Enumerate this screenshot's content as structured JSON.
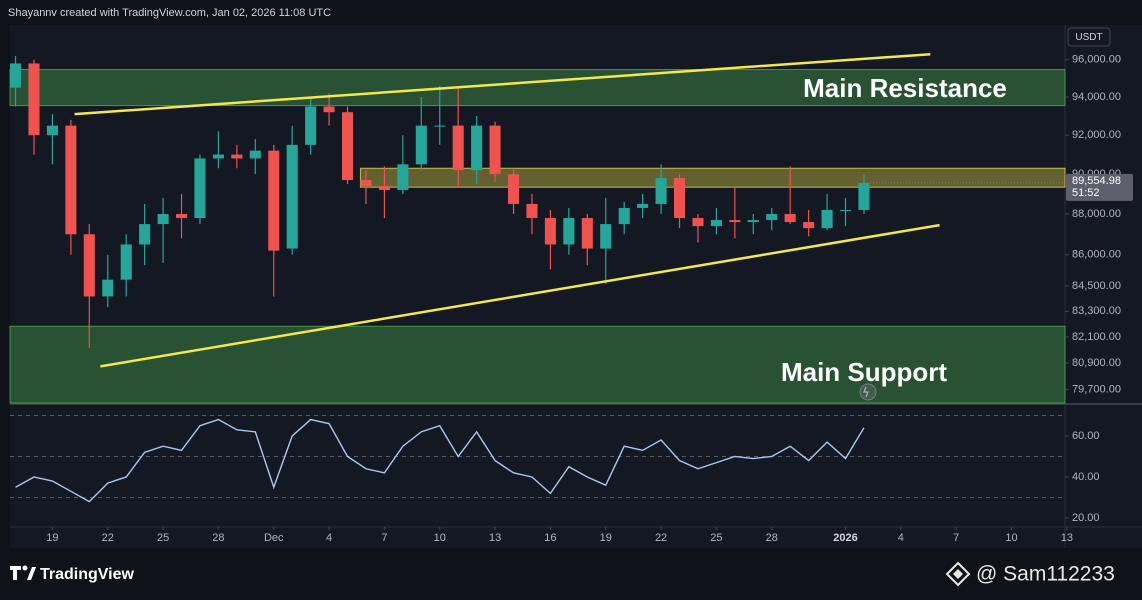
{
  "header": {
    "title": "Shayannv created with TradingView.com, Jan 02, 2026 11:08 UTC"
  },
  "footer": {
    "brand": "TradingView",
    "watermark": "@ Sam112233"
  },
  "chart_data": [
    {
      "type": "candlestick",
      "y_unit": "USDT",
      "log_scale": true,
      "up_color": "#26a69a",
      "down_color": "#ef5350",
      "x": [
        17,
        18,
        19,
        20,
        21,
        22,
        23,
        24,
        25,
        26,
        27,
        28,
        29,
        30,
        31,
        32,
        33,
        34,
        35,
        36,
        37,
        38,
        39,
        40,
        41,
        42,
        43,
        44,
        45,
        46,
        47,
        48,
        49,
        50,
        51,
        52,
        53,
        54,
        55,
        56,
        57,
        58,
        59,
        60,
        61,
        62,
        63
      ],
      "open": [
        94500,
        95800,
        92000,
        92500,
        87000,
        84000,
        84800,
        86500,
        87500,
        88000,
        87800,
        90800,
        91000,
        90800,
        91200,
        86300,
        91500,
        93500,
        93200,
        89700,
        89400,
        89200,
        90500,
        92500,
        92500,
        90200,
        92500,
        90000,
        88500,
        87800,
        86500,
        87800,
        86300,
        87500,
        88300,
        88500,
        89800,
        87800,
        87400,
        87700,
        87600,
        87700,
        88000,
        87600,
        87300,
        88200,
        88200
      ],
      "high": [
        96200,
        96000,
        93100,
        92800,
        87500,
        86000,
        87000,
        88500,
        88800,
        89000,
        91000,
        92200,
        91500,
        91800,
        91500,
        92500,
        94000,
        94200,
        93500,
        90200,
        90400,
        92000,
        94000,
        94600,
        94500,
        93000,
        92700,
        90300,
        89000,
        88200,
        88300,
        88000,
        88800,
        88600,
        89000,
        90500,
        90000,
        88000,
        88300,
        89300,
        88000,
        88300,
        90400,
        88200,
        89000,
        88800,
        90000
      ],
      "low": [
        93500,
        91000,
        90500,
        86000,
        81600,
        83500,
        84000,
        85500,
        85600,
        86800,
        87500,
        90300,
        90300,
        90000,
        84000,
        86000,
        91000,
        92500,
        89500,
        88500,
        87800,
        89000,
        90200,
        91500,
        89300,
        89500,
        89600,
        88000,
        87000,
        85300,
        86000,
        85500,
        84600,
        87000,
        87800,
        88000,
        87300,
        86600,
        87000,
        86800,
        87000,
        87200,
        87500,
        86900,
        87200,
        87400,
        88000
      ],
      "close": [
        95800,
        92000,
        92500,
        87000,
        84000,
        84800,
        86500,
        87500,
        88000,
        87800,
        90800,
        91000,
        90800,
        91200,
        86200,
        91500,
        93500,
        93200,
        89700,
        89400,
        89200,
        90500,
        92500,
        92500,
        90200,
        92500,
        90000,
        88500,
        87800,
        86500,
        87800,
        86300,
        87500,
        88300,
        88500,
        89800,
        87800,
        87400,
        87700,
        87600,
        87700,
        88000,
        87600,
        87300,
        88200,
        88200,
        89554.98
      ],
      "xlim": [
        16.7,
        73.9
      ],
      "xticks": [
        {
          "value": 19,
          "label": "19"
        },
        {
          "value": 22,
          "label": "22"
        },
        {
          "value": 25,
          "label": "25"
        },
        {
          "value": 28,
          "label": "28"
        },
        {
          "value": 31,
          "label": "Dec"
        },
        {
          "value": 34,
          "label": "4"
        },
        {
          "value": 37,
          "label": "7"
        },
        {
          "value": 40,
          "label": "10"
        },
        {
          "value": 43,
          "label": "13"
        },
        {
          "value": 46,
          "label": "16"
        },
        {
          "value": 49,
          "label": "19"
        },
        {
          "value": 52,
          "label": "22"
        },
        {
          "value": 55,
          "label": "25"
        },
        {
          "value": 58,
          "label": "28"
        },
        {
          "value": 62,
          "label": "2026"
        },
        {
          "value": 65,
          "label": "4"
        },
        {
          "value": 68,
          "label": "7"
        },
        {
          "value": 71,
          "label": "10"
        },
        {
          "value": 74,
          "label": "13"
        }
      ],
      "ylim": [
        79100,
        97900
      ],
      "yticks": [
        {
          "value": 96000,
          "label": "96,000.00"
        },
        {
          "value": 94000,
          "label": "94,000.00"
        },
        {
          "value": 92000,
          "label": "92,000.00"
        },
        {
          "value": 90000,
          "label": "90,000.00"
        },
        {
          "value": 88000,
          "label": "88,000.00"
        },
        {
          "value": 86000,
          "label": "86,000.00"
        },
        {
          "value": 84500,
          "label": "84,500.00"
        },
        {
          "value": 83300,
          "label": "83,300.00"
        },
        {
          "value": 82100,
          "label": "82,100.00"
        },
        {
          "value": 80900,
          "label": "80,900.00"
        },
        {
          "value": 79700,
          "label": "79,700.00"
        }
      ],
      "price_tag": {
        "value": 89554.98,
        "label": "89,554.98",
        "countdown": "51:52"
      },
      "zones": [
        {
          "low": 93550,
          "high": 95470,
          "x_start": 16.7,
          "color": "#4caf50"
        },
        {
          "low": 89340,
          "high": 90300,
          "x_start": 35.7,
          "color": "#e6d84a"
        },
        {
          "low": 79100,
          "high": 82600,
          "x_start": 16.7,
          "color": "#4caf50"
        }
      ],
      "trendlines": [
        {
          "x": [
            20.2,
            66.6
          ],
          "y": [
            93100,
            96300
          ]
        },
        {
          "x": [
            21.6,
            67.1
          ],
          "y": [
            80750,
            87450
          ]
        }
      ],
      "trendline_color": "#f5e94a",
      "annotations": [
        "Main Resistance",
        "Main Support"
      ]
    },
    {
      "type": "line",
      "color": "#a9c7ef",
      "x": [
        17,
        18,
        19,
        20,
        21,
        22,
        23,
        24,
        25,
        26,
        27,
        28,
        29,
        30,
        31,
        32,
        33,
        34,
        35,
        36,
        37,
        38,
        39,
        40,
        41,
        42,
        43,
        44,
        45,
        46,
        47,
        48,
        49,
        50,
        51,
        52,
        53,
        54,
        55,
        56,
        57,
        58,
        59,
        60,
        61,
        62,
        63
      ],
      "values": [
        35,
        40,
        38,
        33,
        28,
        37,
        40,
        52,
        55,
        53,
        65,
        68,
        63,
        62,
        35,
        60,
        68,
        66,
        50,
        44,
        42,
        55,
        62,
        65,
        50,
        62,
        48,
        42,
        40,
        32,
        45,
        40,
        36,
        55,
        53,
        58,
        48,
        44,
        47,
        50,
        49,
        50,
        55,
        48,
        57,
        49,
        64
      ],
      "xlim": [
        16.7,
        73.9
      ],
      "ylim": [
        15.6,
        75.1
      ],
      "yticks": [
        {
          "value": 60,
          "label": "60.00"
        },
        {
          "value": 40,
          "label": "40.00"
        },
        {
          "value": 20,
          "label": "20.00"
        }
      ],
      "bands": [
        70,
        50,
        30
      ]
    }
  ]
}
